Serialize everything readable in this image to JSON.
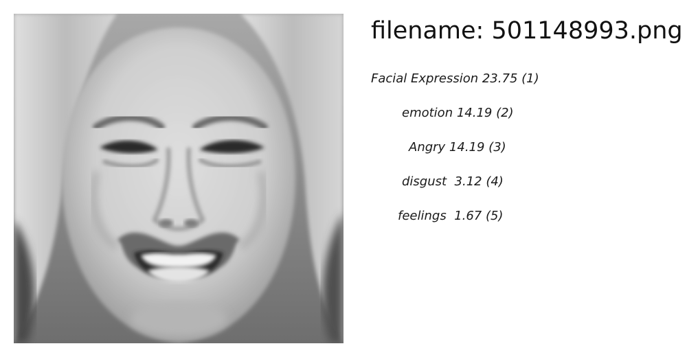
{
  "file": {
    "prefix": "filename: ",
    "name": "501148993.png"
  },
  "photo": {
    "subject": "grayscale close-up of a grimacing face with bared teeth"
  },
  "labels": [
    {
      "text": "Facial Expression 23.75 (1)"
    },
    {
      "text": "emotion 14.19 (2)"
    },
    {
      "text": "Angry 14.19 (3)"
    },
    {
      "text": "disgust  3.12 (4)"
    },
    {
      "text": "feelings  1.67 (5)"
    }
  ]
}
